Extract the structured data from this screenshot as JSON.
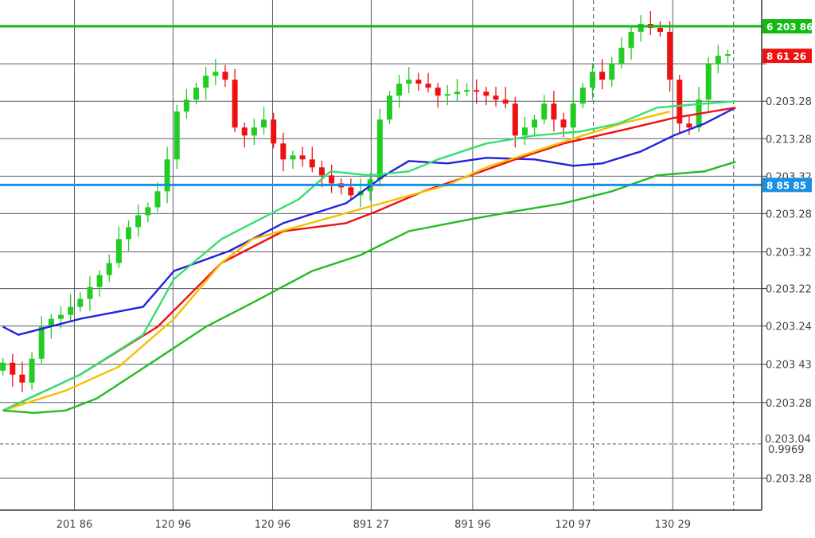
{
  "chart_data": {
    "type": "candlestick",
    "ylim": [
      0,
      64
    ],
    "xlim": [
      -0.3,
      78.5
    ],
    "grid": true,
    "colors": {
      "up": "#22cc22",
      "down": "#ee1111",
      "grid": "#5a5a6a"
    },
    "x_ticks": [
      {
        "i": 7.4,
        "label": "201 86"
      },
      {
        "i": 17.6,
        "label": "120 96"
      },
      {
        "i": 27.9,
        "label": "120 96"
      },
      {
        "i": 38.1,
        "label": "891 27"
      },
      {
        "i": 48.6,
        "label": "891 96"
      },
      {
        "i": 59,
        "label": "120 97"
      },
      {
        "i": 69.3,
        "label": "130 29"
      }
    ],
    "y_ticks": [
      {
        "v": 56,
        "label": ""
      },
      {
        "v": 51.3,
        "label": "0.203.28"
      },
      {
        "v": 46.6,
        "label": "0.213.28"
      },
      {
        "v": 41.9,
        "label": "0.203.32"
      },
      {
        "v": 37.2,
        "label": "0.203.28"
      },
      {
        "v": 32.4,
        "label": "0.203.32"
      },
      {
        "v": 27.8,
        "label": "0.203.22"
      },
      {
        "v": 23.1,
        "label": "0.203.24"
      },
      {
        "v": 18.3,
        "label": "0.203 43"
      },
      {
        "v": 13.5,
        "label": "0.203.28"
      },
      {
        "v": 4,
        "label": "0.203.28"
      }
    ],
    "closes": [
      18.5,
      17,
      16,
      19,
      23,
      24,
      24.5,
      25.5,
      26.5,
      28,
      29.5,
      31,
      34,
      35.5,
      37,
      38,
      40,
      44,
      50,
      51.5,
      53,
      54.5,
      55,
      54,
      48,
      47,
      48,
      49,
      46,
      44,
      44.5,
      44,
      43,
      42,
      41,
      40.5,
      39.5,
      40,
      41.5,
      49,
      52,
      53.5,
      54,
      53.5,
      53,
      52,
      52.2,
      52.5,
      52.7,
      52.5,
      52,
      51.5,
      51,
      47,
      48,
      49,
      51,
      49,
      48,
      51,
      53,
      55,
      54,
      56,
      58,
      60,
      61,
      60.5,
      60,
      54,
      48.5,
      48,
      51.5,
      56,
      57,
      57.2
    ],
    "series": [
      {
        "color": "#2222dd",
        "points": [
          [
            0,
            23
          ],
          [
            1.6,
            22
          ],
          [
            8,
            24
          ],
          [
            14.5,
            25.5
          ],
          [
            17.7,
            30
          ],
          [
            23.4,
            32.5
          ],
          [
            29,
            36
          ],
          [
            35.5,
            38.5
          ],
          [
            39.5,
            42
          ],
          [
            42,
            43.8
          ],
          [
            46,
            43.5
          ],
          [
            50,
            44.2
          ],
          [
            55,
            44
          ],
          [
            59,
            43.2
          ],
          [
            62,
            43.5
          ],
          [
            66,
            45
          ],
          [
            69.4,
            47
          ],
          [
            72.6,
            48.5
          ],
          [
            75.8,
            50.5
          ]
        ]
      },
      {
        "color": "#ee1111",
        "points": [
          [
            0,
            12.5
          ],
          [
            8,
            17
          ],
          [
            16,
            23
          ],
          [
            22.6,
            31
          ],
          [
            29,
            35
          ],
          [
            35.5,
            36
          ],
          [
            38.7,
            37.5
          ],
          [
            43.5,
            40
          ],
          [
            48.4,
            42
          ],
          [
            53,
            44
          ],
          [
            58,
            46
          ],
          [
            64.5,
            47.8
          ],
          [
            69.4,
            49.2
          ],
          [
            75.8,
            50.5
          ]
        ]
      },
      {
        "color": "#f5c000",
        "points": [
          [
            0,
            12.5
          ],
          [
            6.5,
            15
          ],
          [
            12,
            18
          ],
          [
            17.7,
            24
          ],
          [
            22.6,
            31
          ],
          [
            25.8,
            34
          ],
          [
            46,
            40.8
          ],
          [
            50,
            43
          ],
          [
            55,
            45
          ],
          [
            60,
            47
          ],
          [
            64,
            48.5
          ],
          [
            69,
            50
          ]
        ]
      },
      {
        "color": "#33e070",
        "points": [
          [
            0,
            12.5
          ],
          [
            8,
            17
          ],
          [
            14.5,
            22
          ],
          [
            17.7,
            29
          ],
          [
            22.6,
            34
          ],
          [
            27.4,
            37
          ],
          [
            30.6,
            39
          ],
          [
            33.9,
            42.5
          ],
          [
            37.9,
            42
          ],
          [
            42,
            42.5
          ],
          [
            45,
            44
          ],
          [
            50,
            46
          ],
          [
            55,
            47
          ],
          [
            59.7,
            47.5
          ],
          [
            63.7,
            48.5
          ],
          [
            67.7,
            50.5
          ],
          [
            72.6,
            51
          ],
          [
            75.8,
            51.3
          ]
        ]
      },
      {
        "color": "#22bb22",
        "points": [
          [
            0,
            12.5
          ],
          [
            3.2,
            12.2
          ],
          [
            6.5,
            12.5
          ],
          [
            9.7,
            14
          ],
          [
            16,
            19
          ],
          [
            21,
            23
          ],
          [
            25.8,
            26
          ],
          [
            32,
            30
          ],
          [
            37,
            32
          ],
          [
            42,
            35
          ],
          [
            48.4,
            36.5
          ],
          [
            53,
            37.5
          ],
          [
            58,
            38.5
          ],
          [
            63,
            40
          ],
          [
            67.7,
            42
          ],
          [
            72.6,
            42.5
          ],
          [
            75.8,
            43.7
          ]
        ]
      }
    ],
    "hlines": [
      {
        "v": 60.7,
        "color": "#11bb11",
        "tag": "6 203 86"
      },
      {
        "v": 40.8,
        "color": "#1a90e0",
        "tag": "8 85 85"
      }
    ],
    "price_tag": {
      "v": 57,
      "color": "#ee1111",
      "tag": "8 61 26"
    },
    "dashed_hline": {
      "v": 8.3,
      "label": "0.203.04",
      "sublabel": "0.9969"
    },
    "dashed_vlines": [
      61.1,
      75.6
    ]
  }
}
